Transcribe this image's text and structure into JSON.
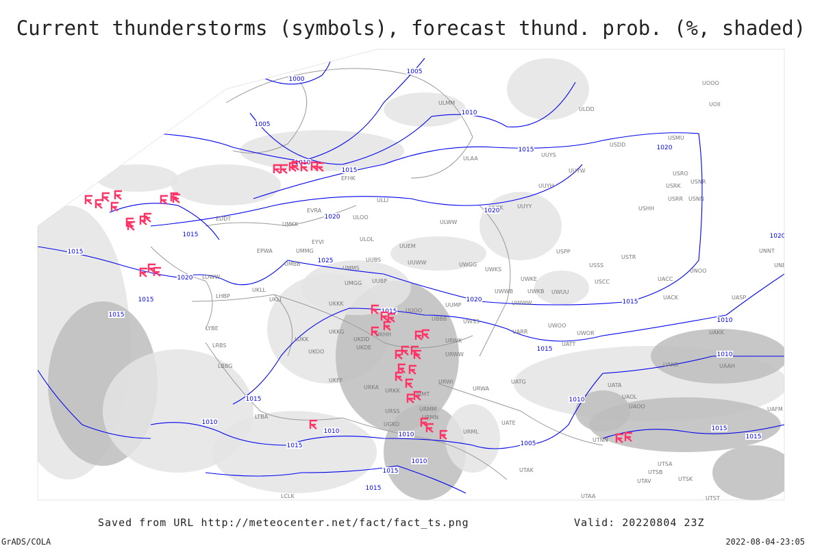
{
  "title": "Current thunderstorms (symbols), forecast thund. prob. (%, shaded)",
  "footer": {
    "saved_from": "Saved from URL http://meteocenter.net/fact/fact_ts.png",
    "valid": "Valid: 20220804 23Z",
    "software": "GrADS/COLA",
    "timestamp": "2022-08-04-23:05"
  },
  "colors": {
    "isobar": "#0000ee",
    "thunderstorm_symbol": "#ff3366",
    "shading_light": "#e4e4e4",
    "shading_dark": "#bdbdbd",
    "borders": "#999999"
  },
  "map": {
    "isobar_labels": [
      "1000",
      "1005",
      "1005",
      "1010",
      "1010",
      "1015",
      "1020",
      "1015",
      "1020",
      "1020",
      "1015",
      "1020",
      "1025",
      "1020",
      "1015",
      "1015",
      "1015",
      "1015",
      "1020",
      "1015",
      "1010",
      "1015",
      "1010",
      "1010",
      "1015",
      "1010",
      "1010",
      "1010",
      "1005",
      "1015",
      "1015",
      "1010",
      "1015",
      "1015",
      "1015"
    ],
    "stations": [
      "ULMM",
      "ULDD",
      "UOOO",
      "UOII",
      "ULAA",
      "UUYS",
      "USDD",
      "USMU",
      "UUYH",
      "USRO",
      "USRK",
      "USRR",
      "USNR",
      "USNN",
      "ULKK",
      "UUYY",
      "USHH",
      "ULWW",
      "EFHK",
      "ULLI",
      "ULOO",
      "EVRA",
      "ULOL",
      "UUEM",
      "EDDT",
      "UMKK",
      "EYVI",
      "EPWA",
      "UMMG",
      "UMBB",
      "UUBS",
      "UMMS",
      "UUWW",
      "UWGG",
      "UWKS",
      "USSS",
      "USTR",
      "USPP",
      "UNOO",
      "UNNT",
      "UNBB",
      "UKLL",
      "UKLI",
      "LHBP",
      "LOWW",
      "UMGG",
      "UUBP",
      "UWKE",
      "UWKB",
      "UWUU",
      "USCC",
      "UACC",
      "UACK",
      "UASP",
      "UWWW",
      "UUMP",
      "UKKK",
      "UUOO",
      "UKHH",
      "UKKG",
      "UKDD",
      "UKDE",
      "UKFF",
      "URKA",
      "URKK",
      "URSS",
      "URWW",
      "URWI",
      "URWA",
      "UATG",
      "URMT",
      "URMM",
      "URMN",
      "UKOO",
      "LUKK",
      "LRBS",
      "LBBG",
      "LYBE",
      "LTBA",
      "UATE",
      "URML",
      "UGKO",
      "UWSS",
      "URWK",
      "UARR",
      "UATT",
      "UWOR",
      "UWOO",
      "UBBB",
      "UTAK",
      "UATA",
      "UAOL",
      "UAOO",
      "UAKD",
      "UAKK",
      "UAAH",
      "UAFM",
      "UTNN",
      "UTSA",
      "UTSB",
      "UTAV",
      "UTSK",
      "UTST",
      "UTAA",
      "LCLK",
      "UUYW",
      "UWWB"
    ],
    "thunderstorm_count": 45
  }
}
